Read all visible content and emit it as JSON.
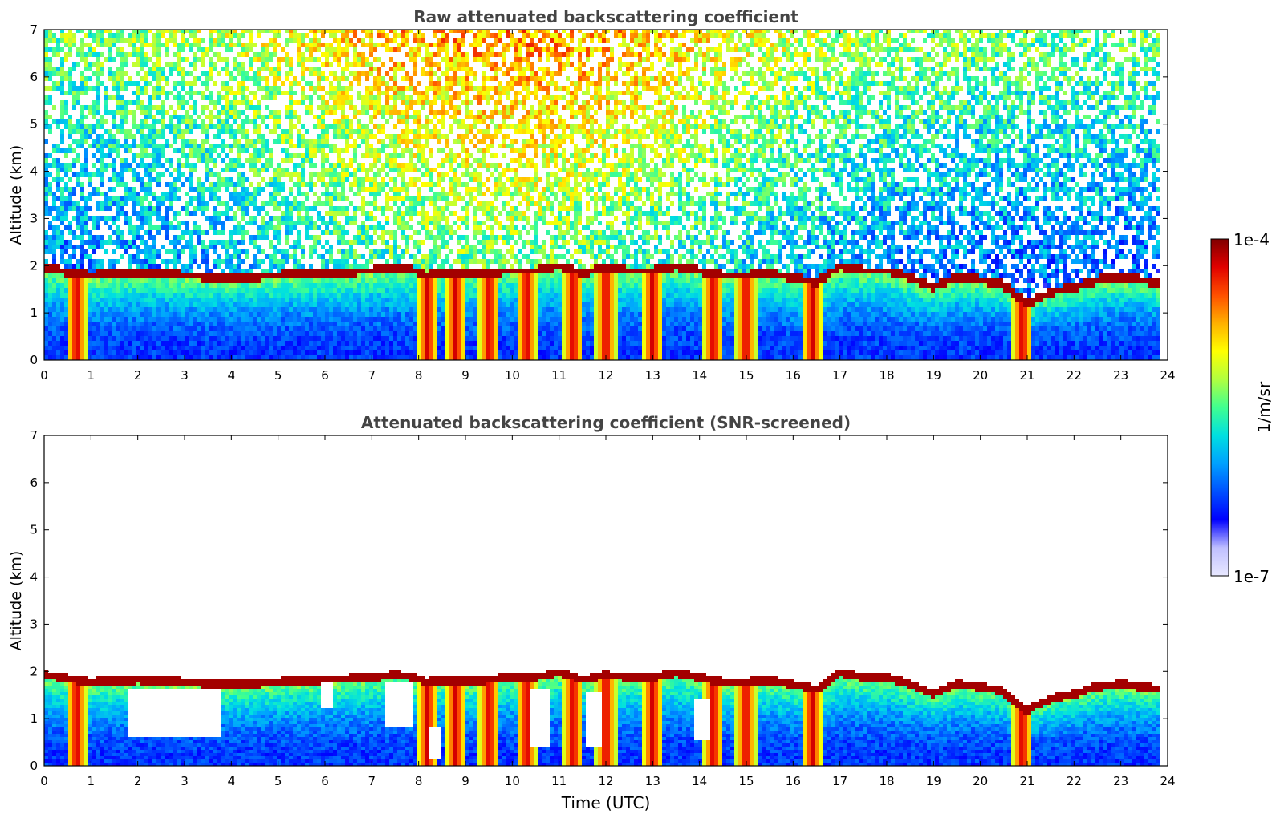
{
  "chart_data": [
    {
      "type": "heatmap",
      "title": "Raw attenuated backscattering coefficient",
      "xlabel": "",
      "ylabel": "Altitude (km)",
      "xlim": [
        0,
        24
      ],
      "ylim": [
        0,
        7
      ],
      "x_ticks": [
        "0",
        "1",
        "2",
        "3",
        "4",
        "5",
        "6",
        "7",
        "8",
        "9",
        "10",
        "11",
        "12",
        "13",
        "14",
        "15",
        "16",
        "17",
        "18",
        "19",
        "20",
        "21",
        "22",
        "23",
        "24"
      ],
      "y_ticks": [
        "0",
        "1",
        "2",
        "3",
        "4",
        "5",
        "6",
        "7"
      ],
      "data_end_hour": 23.8,
      "noisy_background": true,
      "layer_top_km": {
        "hours": [
          0,
          0.7,
          1,
          2,
          3,
          3.5,
          4,
          5,
          5.5,
          6,
          6.5,
          7,
          7.5,
          7.8,
          8.2,
          8.6,
          9,
          9.4,
          10,
          10.5,
          11,
          11.5,
          12,
          12.5,
          13,
          13.5,
          14,
          14.5,
          15,
          15.5,
          16,
          16.5,
          17,
          17.5,
          18,
          18.5,
          19,
          19.5,
          20,
          20.5,
          21,
          21.5,
          22,
          22.5,
          23,
          23.8
        ],
        "km": [
          1.9,
          1.8,
          1.75,
          1.8,
          1.75,
          1.72,
          1.7,
          1.75,
          1.78,
          1.8,
          1.82,
          1.85,
          1.9,
          1.88,
          1.75,
          1.8,
          1.75,
          1.8,
          1.85,
          1.85,
          1.95,
          1.8,
          1.9,
          1.85,
          1.85,
          1.95,
          1.85,
          1.75,
          1.75,
          1.8,
          1.7,
          1.6,
          1.95,
          1.85,
          1.85,
          1.7,
          1.5,
          1.7,
          1.65,
          1.55,
          1.15,
          1.4,
          1.5,
          1.65,
          1.7,
          1.6
        ]
      },
      "precipitation_hours": [
        0.7,
        8.2,
        8.8,
        9.5,
        10.3,
        11.3,
        12.0,
        13.0,
        14.3,
        15.0,
        16.4,
        20.9
      ]
    },
    {
      "type": "heatmap",
      "title": "Attenuated backscattering coefficient (SNR-screened)",
      "xlabel": "Time (UTC)",
      "ylabel": "Altitude (km)",
      "xlim": [
        0,
        24
      ],
      "ylim": [
        0,
        7
      ],
      "x_ticks": [
        "0",
        "1",
        "2",
        "3",
        "4",
        "5",
        "6",
        "7",
        "8",
        "9",
        "10",
        "11",
        "12",
        "13",
        "14",
        "15",
        "16",
        "17",
        "18",
        "19",
        "20",
        "21",
        "22",
        "23",
        "24"
      ],
      "y_ticks": [
        "0",
        "1",
        "2",
        "3",
        "4",
        "5",
        "6",
        "7"
      ],
      "data_end_hour": 23.8,
      "noisy_background": false,
      "screened_gaps": [
        {
          "hours": [
            1.8,
            3.8
          ],
          "km": [
            0.6,
            1.6
          ]
        },
        {
          "hours": [
            5.9,
            6.2
          ],
          "km": [
            1.2,
            1.7
          ]
        },
        {
          "hours": [
            7.3,
            7.9
          ],
          "km": [
            0.8,
            1.7
          ]
        },
        {
          "hours": [
            8.2,
            8.5
          ],
          "km": [
            0.1,
            0.8
          ]
        },
        {
          "hours": [
            10.4,
            10.8
          ],
          "km": [
            0.4,
            1.6
          ]
        },
        {
          "hours": [
            11.6,
            11.9
          ],
          "km": [
            0.4,
            1.5
          ]
        },
        {
          "hours": [
            13.9,
            14.2
          ],
          "km": [
            0.5,
            1.4
          ]
        }
      ]
    }
  ],
  "colorbar": {
    "label": "1/m/sr",
    "max_label": "1e-4",
    "min_label": "1e-7",
    "colormap": [
      "#e8e8ff",
      "#bfbfff",
      "#0000ff",
      "#0050ff",
      "#00a0ff",
      "#00e0e0",
      "#40ff90",
      "#b0ff40",
      "#ffff00",
      "#ffb000",
      "#ff5000",
      "#e00000",
      "#800000"
    ]
  }
}
